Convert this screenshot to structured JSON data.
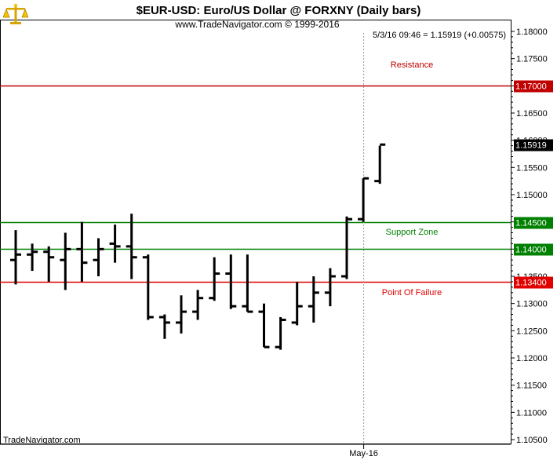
{
  "header": {
    "title": "$EUR-USD:  Euro/US Dollar @ FORXNY  (Daily bars)",
    "subtitle": "www.TradeNavigator.com © 1999-2016",
    "readout": "5/3/16 09:46 = 1.15919 (+0.00575)"
  },
  "footer": {
    "brand": "TradeNavigator.com"
  },
  "logo": {
    "icon": "scales-logo-icon"
  },
  "colors": {
    "resistance": "#c00000",
    "support": "#008000",
    "failure": "#e00000",
    "last": "#000000",
    "bars": "#000000"
  },
  "chart_data": {
    "type": "ohlc",
    "ylim": [
      1.105,
      1.182
    ],
    "yticks": [
      "1.18000",
      "1.17500",
      "1.17000",
      "1.16500",
      "1.16000",
      "1.15500",
      "1.15000",
      "1.14500",
      "1.14000",
      "1.13500",
      "1.13000",
      "1.12500",
      "1.12000",
      "1.11500",
      "1.11000",
      "1.10500"
    ],
    "xlabel_tick": {
      "label": "May-16",
      "index": 21
    },
    "levels": [
      {
        "name": "Resistance",
        "value": 1.17,
        "label": "1.17000",
        "color": "#c00000"
      },
      {
        "name": "Support Zone",
        "value": 1.145,
        "label": "1.14500",
        "color": "#008000"
      },
      {
        "name": "",
        "value": 1.14,
        "label": "1.14000",
        "color": "#008000"
      },
      {
        "name": "Point Of Failure",
        "value": 1.134,
        "label": "1.13400",
        "color": "#e00000"
      }
    ],
    "last": {
      "value": 1.15919,
      "label": "1.15919"
    },
    "bars": [
      {
        "o": 1.138,
        "h": 1.1435,
        "l": 1.1335,
        "c": 1.139
      },
      {
        "o": 1.139,
        "h": 1.141,
        "l": 1.136,
        "c": 1.1395
      },
      {
        "o": 1.1395,
        "h": 1.1405,
        "l": 1.134,
        "c": 1.1385
      },
      {
        "o": 1.138,
        "h": 1.143,
        "l": 1.1325,
        "c": 1.14
      },
      {
        "o": 1.14,
        "h": 1.145,
        "l": 1.134,
        "c": 1.1375
      },
      {
        "o": 1.138,
        "h": 1.142,
        "l": 1.135,
        "c": 1.14
      },
      {
        "o": 1.141,
        "h": 1.1445,
        "l": 1.1375,
        "c": 1.1405
      },
      {
        "o": 1.1405,
        "h": 1.1465,
        "l": 1.1345,
        "c": 1.1385
      },
      {
        "o": 1.1385,
        "h": 1.139,
        "l": 1.127,
        "c": 1.1275
      },
      {
        "o": 1.1275,
        "h": 1.128,
        "l": 1.1235,
        "c": 1.1265
      },
      {
        "o": 1.1265,
        "h": 1.1315,
        "l": 1.1245,
        "c": 1.1285
      },
      {
        "o": 1.1285,
        "h": 1.1325,
        "l": 1.127,
        "c": 1.131
      },
      {
        "o": 1.131,
        "h": 1.1385,
        "l": 1.1305,
        "c": 1.1355
      },
      {
        "o": 1.1355,
        "h": 1.139,
        "l": 1.129,
        "c": 1.1295
      },
      {
        "o": 1.1295,
        "h": 1.139,
        "l": 1.1285,
        "c": 1.1285
      },
      {
        "o": 1.1285,
        "h": 1.13,
        "l": 1.122,
        "c": 1.122
      },
      {
        "o": 1.122,
        "h": 1.1275,
        "l": 1.1215,
        "c": 1.127
      },
      {
        "o": 1.1265,
        "h": 1.134,
        "l": 1.126,
        "c": 1.1295
      },
      {
        "o": 1.1295,
        "h": 1.135,
        "l": 1.1265,
        "c": 1.132
      },
      {
        "o": 1.132,
        "h": 1.1365,
        "l": 1.1295,
        "c": 1.135
      },
      {
        "o": 1.135,
        "h": 1.146,
        "l": 1.1345,
        "c": 1.1455
      },
      {
        "o": 1.1455,
        "h": 1.153,
        "l": 1.145,
        "c": 1.153
      },
      {
        "o": 1.1525,
        "h": 1.159,
        "l": 1.152,
        "c": 1.1592
      }
    ]
  }
}
